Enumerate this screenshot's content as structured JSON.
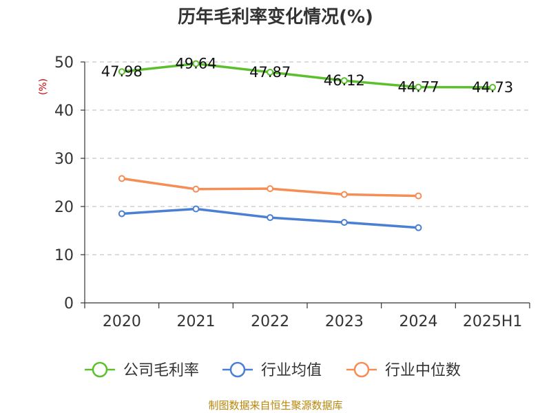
{
  "chart_data": {
    "type": "line",
    "title": "历年毛利率变化情况(%)",
    "ylabel": "(%)",
    "xlabel": "",
    "categories": [
      "2020",
      "2021",
      "2022",
      "2023",
      "2024",
      "2025H1"
    ],
    "ylim": [
      0,
      50
    ],
    "yticks": [
      0,
      10,
      20,
      30,
      40,
      50
    ],
    "grid": true,
    "legend_position": "bottom",
    "series": [
      {
        "name": "公司毛利率",
        "color": "#5cc02e",
        "values": [
          47.98,
          49.64,
          47.87,
          46.12,
          44.77,
          44.73
        ],
        "labels": [
          "47.98",
          "49.64",
          "47.87",
          "46.12",
          "44.77",
          "44.73"
        ]
      },
      {
        "name": "行业均值",
        "color": "#4a7fd4",
        "values": [
          18.5,
          19.5,
          17.7,
          16.7,
          15.6,
          null
        ]
      },
      {
        "name": "行业中位数",
        "color": "#f58d55",
        "values": [
          25.8,
          23.6,
          23.7,
          22.5,
          22.2,
          null
        ]
      }
    ]
  },
  "source": "制图数据来自恒生聚源数据库"
}
